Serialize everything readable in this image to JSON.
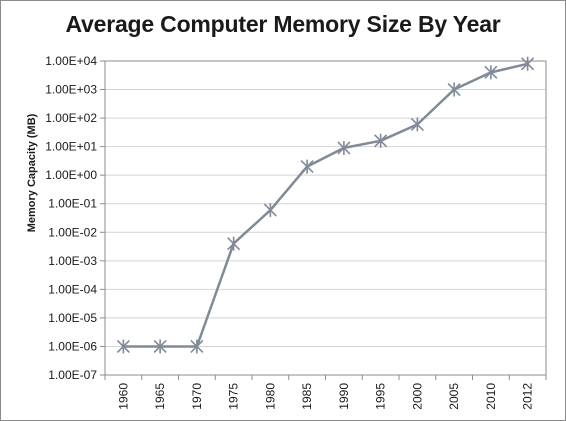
{
  "chart_data": {
    "type": "line",
    "title": "Average Computer Memory Size By Year",
    "xlabel": "",
    "ylabel": "Memory Capacity  (MB)",
    "y_scale": "log",
    "ylim": [
      1e-07,
      10000.0
    ],
    "grid": true,
    "legend": "none",
    "categories": [
      "1960",
      "1965",
      "1970",
      "1975",
      "1980",
      "1985",
      "1990",
      "1995",
      "2000",
      "2005",
      "2010",
      "2012"
    ],
    "y_tick_labels": [
      "1.00E-07",
      "1.00E-06",
      "1.00E-05",
      "1.00E-04",
      "1.00E-03",
      "1.00E-02",
      "1.00E-01",
      "1.00E+00",
      "1.00E+01",
      "1.00E+02",
      "1.00E+03",
      "1.00E+04"
    ],
    "series": [
      {
        "values": [
          1e-06,
          1e-06,
          1e-06,
          0.004,
          0.06,
          2,
          9,
          16,
          60,
          1000,
          4000,
          8000
        ]
      }
    ],
    "colors": {
      "line": "#808a99",
      "marker": "#808a99",
      "grid": "#d4d4d4",
      "axis": "#8c8c8c"
    }
  }
}
